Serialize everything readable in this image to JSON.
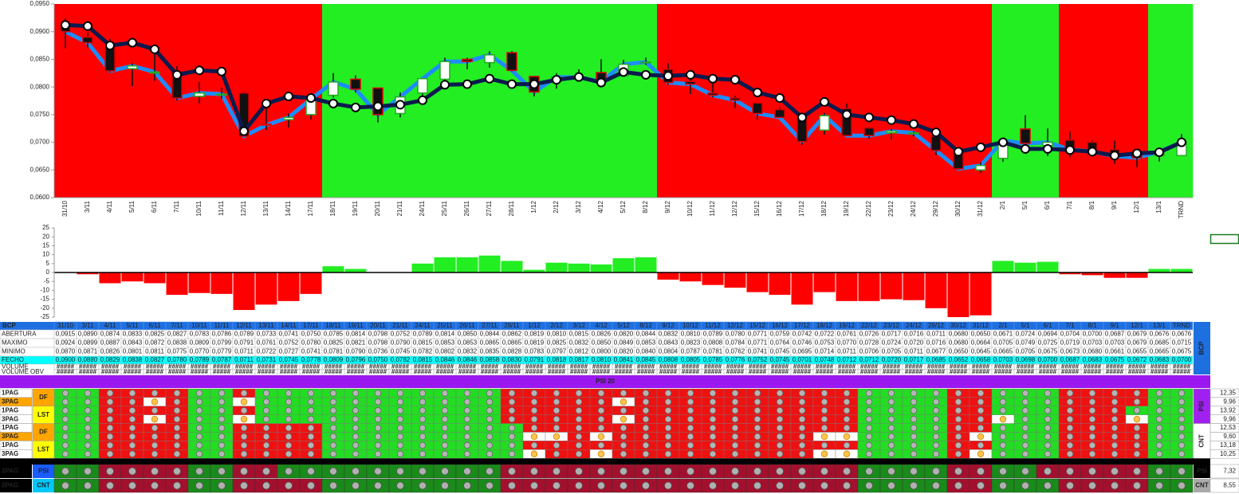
{
  "chart_data": [
    {
      "type": "candlestick",
      "categories": [
        "31/10",
        "3/11",
        "4/11",
        "5/11",
        "6/11",
        "7/11",
        "10/11",
        "11/11",
        "12/11",
        "13/11",
        "14/11",
        "17/11",
        "18/11",
        "19/11",
        "20/11",
        "21/11",
        "24/11",
        "25/11",
        "26/11",
        "27/11",
        "28/11",
        "1/12",
        "2/12",
        "3/12",
        "4/12",
        "5/12",
        "8/12",
        "9/12",
        "10/12",
        "11/12",
        "12/12",
        "15/12",
        "16/12",
        "17/12",
        "18/12",
        "19/12",
        "22/12",
        "23/12",
        "24/12",
        "29/12",
        "30/12",
        "31/12",
        "2/1",
        "5/1",
        "6/1",
        "7/1",
        "8/1",
        "9/1",
        "12/1",
        "13/1",
        "TRND"
      ],
      "series": [
        {
          "name": "ABERTURA",
          "values": [
            0.0915,
            0.089,
            0.0874,
            0.0833,
            0.0825,
            0.0827,
            0.0783,
            0.0786,
            0.0789,
            0.0733,
            0.0741,
            0.075,
            0.0785,
            0.0814,
            0.0798,
            0.0752,
            0.0789,
            0.0814,
            0.085,
            0.0844,
            0.0862,
            0.0819,
            0.081,
            0.0815,
            0.0826,
            0.082,
            0.0844,
            0.0832,
            0.081,
            0.0789,
            0.078,
            0.0771,
            0.0759,
            0.0742,
            0.0722,
            0.0761,
            0.0726,
            0.0717,
            0.0716,
            0.0711,
            0.068,
            0.065,
            0.0671,
            0.0724,
            0.0694,
            0.0704,
            0.07,
            0.0687,
            0.0679,
            0.0676,
            0.0676
          ],
          "value_labels": [
            "0,0915",
            "0,0890",
            "0,0874",
            "0,0833",
            "0,0825",
            "0,0827",
            "0,0783",
            "0,0786",
            "0,0789",
            "0,0733",
            "0,0741",
            "0,0750",
            "0,0785",
            "0,0814",
            "0,0798",
            "0,0752",
            "0,0789",
            "0,0814",
            "0,0850",
            "0,0844",
            "0,0862",
            "0,0819",
            "0,0810",
            "0,0815",
            "0,0826",
            "0,0820",
            "0,0844",
            "0,0832",
            "0,0810",
            "0,0789",
            "0,0780",
            "0,0771",
            "0,0759",
            "0,0742",
            "0,0722",
            "0,0761",
            "0,0726",
            "0,0717",
            "0,0716",
            "0,0711",
            "0,0680",
            "0,0650",
            "0,0671",
            "0,0724",
            "0,0694",
            "0,0704",
            "0,0700",
            "0,0687",
            "0,0679",
            "0,0676",
            "0,0676"
          ]
        },
        {
          "name": "MAXIMO",
          "values": [
            0.0924,
            0.0899,
            0.0887,
            0.0843,
            0.0872,
            0.0838,
            0.0809,
            0.0799,
            0.0791,
            0.0761,
            0.0752,
            0.078,
            0.0825,
            0.0821,
            0.0798,
            0.079,
            0.0815,
            0.0853,
            0.0853,
            0.0865,
            0.0865,
            0.0819,
            0.0825,
            0.0832,
            0.085,
            0.0849,
            0.0853,
            0.0843,
            0.0823,
            0.0808,
            0.0784,
            0.0771,
            0.0764,
            0.0746,
            0.0753,
            0.077,
            0.0728,
            0.0724,
            0.072,
            0.0716,
            0.068,
            0.0664,
            0.0705,
            0.0749,
            0.0725,
            0.0719,
            0.0703,
            0.0703,
            0.0679,
            0.0685,
            0.0715
          ],
          "value_labels": [
            "0,0924",
            "0,0899",
            "0,0887",
            "0,0843",
            "0,0872",
            "0,0838",
            "0,0809",
            "0,0799",
            "0,0791",
            "0,0761",
            "0,0752",
            "0,0780",
            "0,0825",
            "0,0821",
            "0,0798",
            "0,0790",
            "0,0815",
            "0,0853",
            "0,0853",
            "0,0865",
            "0,0865",
            "0,0819",
            "0,0825",
            "0,0832",
            "0,0850",
            "0,0849",
            "0,0853",
            "0,0843",
            "0,0823",
            "0,0808",
            "0,0784",
            "0,0771",
            "0,0764",
            "0,0746",
            "0,0753",
            "0,0770",
            "0,0728",
            "0,0724",
            "0,0720",
            "0,0716",
            "0,0680",
            "0,0664",
            "0,0705",
            "0,0749",
            "0,0725",
            "0,0719",
            "0,0703",
            "0,0703",
            "0,0679",
            "0,0685",
            "0,0715"
          ]
        },
        {
          "name": "MINIMO",
          "values": [
            0.087,
            0.0871,
            0.0826,
            0.0801,
            0.0811,
            0.0775,
            0.077,
            0.0779,
            0.0711,
            0.0722,
            0.0727,
            0.0741,
            0.0781,
            0.079,
            0.0736,
            0.0745,
            0.0782,
            0.0802,
            0.0832,
            0.0835,
            0.0828,
            0.0783,
            0.0797,
            0.0812,
            0.08,
            0.082,
            0.084,
            0.0804,
            0.0787,
            0.0781,
            0.0762,
            0.0741,
            0.0745,
            0.0695,
            0.0714,
            0.0711,
            0.0706,
            0.0705,
            0.0711,
            0.0677,
            0.065,
            0.0645,
            0.0665,
            0.0705,
            0.0675,
            0.0673,
            0.068,
            0.0661,
            0.0655,
            0.0665,
            0.0675
          ],
          "value_labels": [
            "0,0870",
            "0,0871",
            "0,0826",
            "0,0801",
            "0,0811",
            "0,0775",
            "0,0770",
            "0,0779",
            "0,0711",
            "0,0722",
            "0,0727",
            "0,0741",
            "0,0781",
            "0,0790",
            "0,0736",
            "0,0745",
            "0,0782",
            "0,0802",
            "0,0832",
            "0,0835",
            "0,0828",
            "0,0783",
            "0,0797",
            "0,0812",
            "0,0800",
            "0,0820",
            "0,0840",
            "0,0804",
            "0,0787",
            "0,0781",
            "0,0762",
            "0,0741",
            "0,0745",
            "0,0695",
            "0,0714",
            "0,0711",
            "0,0706",
            "0,0705",
            "0,0711",
            "0,0677",
            "0,0650",
            "0,0645",
            "0,0665",
            "0,0705",
            "0,0675",
            "0,0673",
            "0,0680",
            "0,0661",
            "0,0655",
            "0,0665",
            "0,0675"
          ]
        },
        {
          "name": "FECHO",
          "color": "#1e8cff",
          "values": [
            0.09,
            0.088,
            0.0829,
            0.0838,
            0.0827,
            0.078,
            0.0789,
            0.0787,
            0.0711,
            0.0731,
            0.0745,
            0.0778,
            0.0809,
            0.0796,
            0.075,
            0.0782,
            0.0815,
            0.0846,
            0.0846,
            0.0858,
            0.083,
            0.0791,
            0.0818,
            0.0817,
            0.081,
            0.0841,
            0.0845,
            0.0808,
            0.0805,
            0.0785,
            0.0776,
            0.0752,
            0.0745,
            0.0701,
            0.0748,
            0.0712,
            0.0712,
            0.072,
            0.0717,
            0.0685,
            0.0652,
            0.0658,
            0.0703,
            0.0698,
            0.07,
            0.0687,
            0.0683,
            0.0675,
            0.0672,
            0.0683,
            0.07
          ],
          "value_labels": [
            "0,0900",
            "0,0880",
            "0,0829",
            "0,0838",
            "0,0827",
            "0,0780",
            "0,0789",
            "0,0787",
            "0,0711",
            "0,0731",
            "0,0745",
            "0,0778",
            "0,0809",
            "0,0796",
            "0,0750",
            "0,0782",
            "0,0815",
            "0,0846",
            "0,0846",
            "0,0858",
            "0,0830",
            "0,0791",
            "0,0818",
            "0,0817",
            "0,0810",
            "0,0841",
            "0,0845",
            "0,0808",
            "0,0805",
            "0,0785",
            "0,0776",
            "0,0752",
            "0,0745",
            "0,0701",
            "0,0748",
            "0,0712",
            "0,0712",
            "0,0720",
            "0,0717",
            "0,0685",
            "0,0652",
            "0,0658",
            "0,0703",
            "0,0698",
            "0,0700",
            "0,0687",
            "0,0683",
            "0,0675",
            "0,0672",
            "0,0683",
            "0,0700"
          ]
        }
      ],
      "lines": [
        {
          "color": "#0c1a4d",
          "values": [
            0.0912,
            0.091,
            0.0875,
            0.088,
            0.0868,
            0.0822,
            0.083,
            0.0828,
            0.072,
            0.077,
            0.0783,
            0.078,
            0.077,
            0.0763,
            0.0765,
            0.0768,
            0.0776,
            0.0804,
            0.0805,
            0.0815,
            0.0805,
            0.0805,
            0.0813,
            0.0818,
            0.0808,
            0.0827,
            0.0822,
            0.082,
            0.0822,
            0.0815,
            0.0813,
            0.079,
            0.078,
            0.0745,
            0.0773,
            0.075,
            0.0745,
            0.074,
            0.0733,
            0.0718,
            0.0683,
            0.0691,
            0.07,
            0.0688,
            0.0688,
            0.0686,
            0.0683,
            0.0676,
            0.068,
            0.0682,
            0.07
          ]
        }
      ],
      "band_colors": [
        "#ff0000",
        "#ff0000",
        "#ff0000",
        "#ff0000",
        "#ff0000",
        "#ff0000",
        "#ff0000",
        "#ff0000",
        "#ff0000",
        "#ff0000",
        "#ff0000",
        "#ff0000",
        "#22ee22",
        "#22ee22",
        "#22ee22",
        "#22ee22",
        "#22ee22",
        "#22ee22",
        "#22ee22",
        "#22ee22",
        "#22ee22",
        "#22ee22",
        "#22ee22",
        "#22ee22",
        "#22ee22",
        "#22ee22",
        "#22ee22",
        "#ff0000",
        "#ff0000",
        "#ff0000",
        "#ff0000",
        "#ff0000",
        "#ff0000",
        "#ff0000",
        "#ff0000",
        "#ff0000",
        "#ff0000",
        "#ff0000",
        "#ff0000",
        "#ff0000",
        "#ff0000",
        "#ff0000",
        "#22ee22",
        "#22ee22",
        "#22ee22",
        "#ff0000",
        "#ff0000",
        "#ff0000",
        "#ff0000",
        "#22ee22",
        "#22ee22"
      ],
      "ylim": [
        0.06,
        0.095
      ],
      "yticks": [
        {
          "value": 0.06,
          "label": "0,0600"
        },
        {
          "value": 0.065,
          "label": "0,0650"
        },
        {
          "value": 0.07,
          "label": "0,0700"
        },
        {
          "value": 0.075,
          "label": "0,0750"
        },
        {
          "value": 0.08,
          "label": "0,0800"
        },
        {
          "value": 0.085,
          "label": "0,0850"
        },
        {
          "value": 0.09,
          "label": "0,0900"
        },
        {
          "value": 0.095,
          "label": "0,0950"
        }
      ]
    },
    {
      "type": "bar",
      "values": [
        0,
        -1,
        -6,
        -5,
        -6,
        -12.5,
        -11.5,
        -12,
        -21,
        -18,
        -16,
        -12,
        3.5,
        2,
        0,
        0,
        5,
        8.5,
        8.5,
        9.5,
        6.5,
        1.5,
        5.5,
        5,
        4.5,
        8,
        8.5,
        -4,
        -5,
        -7,
        -8.5,
        -11,
        -12.5,
        -18,
        -11,
        -16,
        -16,
        -15,
        -15.5,
        -20,
        -25,
        -24,
        6.5,
        5.5,
        6,
        -1,
        -1.5,
        -3,
        -3,
        2,
        2
      ],
      "positive_color": "#22ee22",
      "negative_color": "#ff0000",
      "ylim": [
        -25,
        25
      ],
      "yticks": [
        -25,
        -20,
        -15,
        -10,
        -5,
        0,
        5,
        10,
        15,
        20,
        25
      ]
    }
  ],
  "table": {
    "corner": "BCP",
    "side_label": "BCP",
    "extra_rows": [
      {
        "label": "VOLUME",
        "cell": "#####"
      },
      {
        "label": "VOLUME OBV",
        "cell": "#####"
      }
    ]
  },
  "signals": {
    "title": "PSI 20",
    "blocks": [
      {
        "name": "PSI",
        "tags": [
          "DF",
          "LST"
        ],
        "rows": [
          {
            "label": "1PAG",
            "cells": "GGRRRRGGRGGGGGGGGGGGRRRRRRRRRRRRRRRRGGGGRRGGGRRRRGG",
            "score": "12,35"
          },
          {
            "label": "3PAG",
            "cells": "GGRRWRGGWGGGGGGGGGGGRRRRRWRRRRRRRRRRGGGGRRGGGRRRRGG",
            "score": "9,96"
          },
          {
            "label": "1PAG",
            "cells": "GGRRRRGGRGGGGGGGGGGGRRRRRRRRRRRRRRRRGGGGRRGGGRRRGGG",
            "score": "13,92"
          },
          {
            "label": "3PAG",
            "cells": "GGRRWRGGWGGGGGGGGGGGRRRRRWRRRRRRRRRRGGGGRRWGGRRRWGG",
            "score": "9,96"
          }
        ]
      },
      {
        "name": "CNT",
        "tags": [
          "DF",
          "LST"
        ],
        "rows": [
          {
            "label": "1PAG",
            "cells": "GGRRRRGGRRRRGGGGGGGGGRRRRRRRRRRRRRRRGGGGRRGGGRRRRGG",
            "score": "12,53"
          },
          {
            "label": "3PAG",
            "cells": "GGRRRRGGRRRRGGGGGGGGGWWRWRRRRRRRRRWWGGGGRWGGGRRRRGG",
            "score": "9,60"
          },
          {
            "label": "1PAG",
            "cells": "GGRRRRGGRRRRGGGGGGGGGRRRRRRRRRRRRRRRGGGGRRGGGRRRRGG",
            "score": "13,18"
          },
          {
            "label": "3PAG",
            "cells": "GGRRRRGGRRRRGGGGGGGGGWRRWRRRRRRRRRWWGGGGRWGGGRRRRGG",
            "score": "10,25"
          }
        ]
      }
    ],
    "summary": [
      {
        "label": "2PAG",
        "tag": "PSI",
        "cells": "GGRRRRGGRRGGGGGGGGGGRRRRRRRRRRRRRRRRGGGGRRGGRRRRRGG",
        "score": "7,32"
      },
      {
        "label": "2PAG",
        "tag": "CNT",
        "cells": "GGRRRRGGRRRRGGGGGGGGRRRRRRRRRRRRRRRRGGGGRRGGGRRRRGG",
        "score": "8,55"
      }
    ]
  }
}
